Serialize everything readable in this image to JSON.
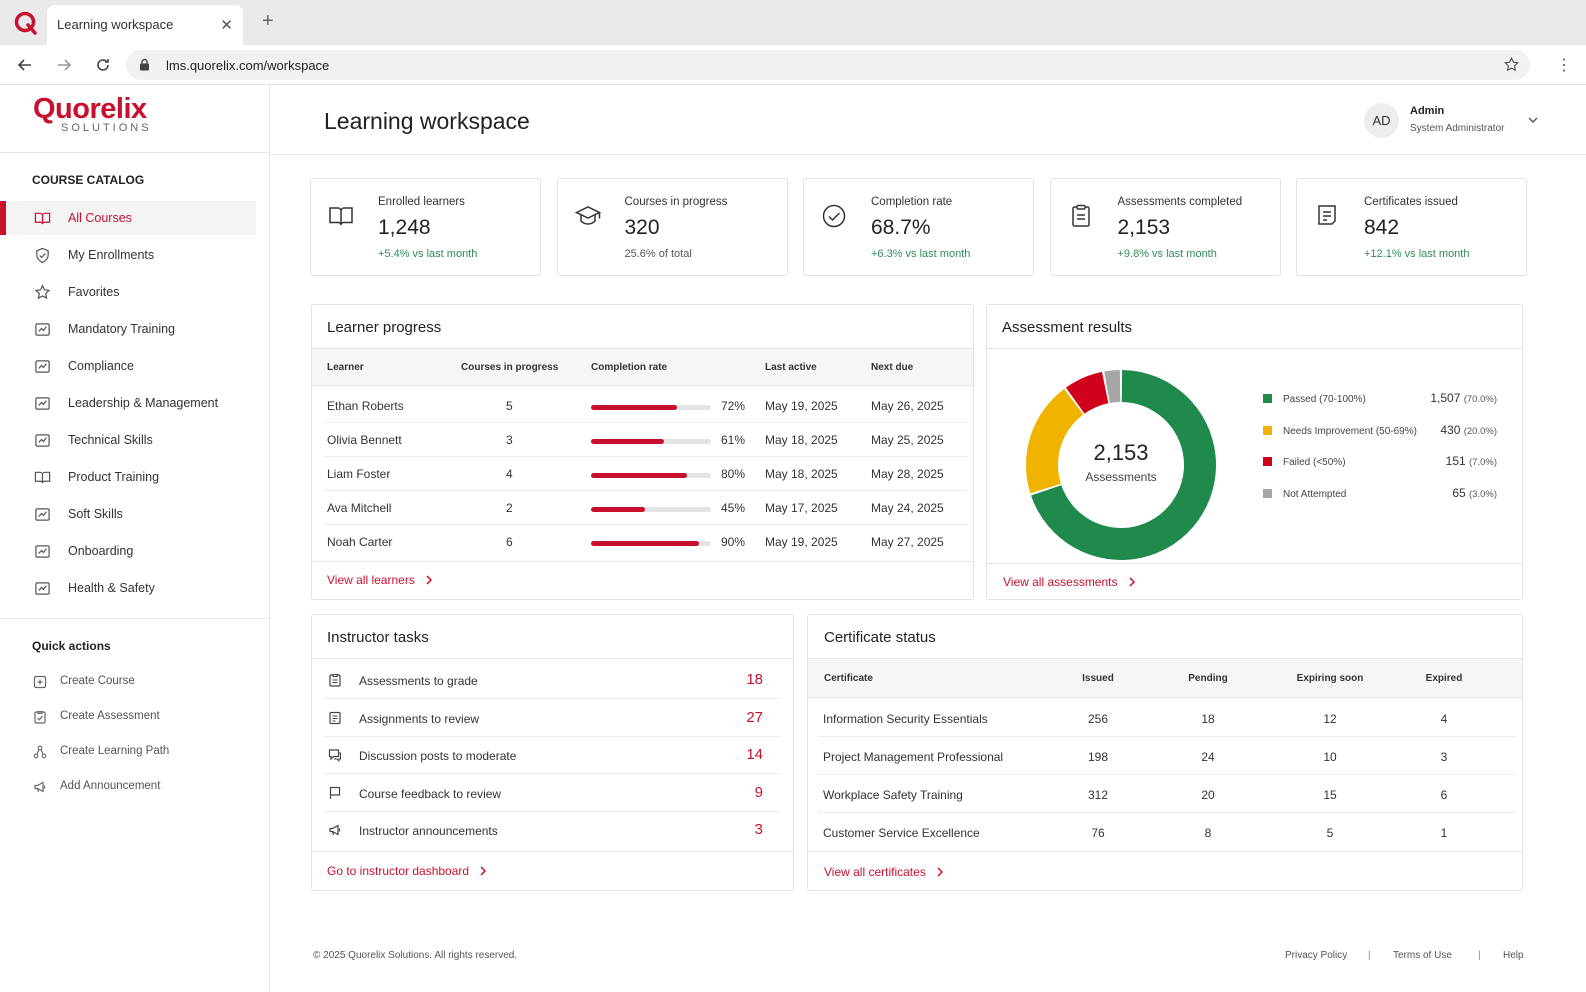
{
  "browser": {
    "tab_title": "Learning workspace",
    "tab_close": "✕",
    "new_tab": "+",
    "url": "lms.quorelix.com/workspace"
  },
  "brand": {
    "name": "Quorelix",
    "sub": "SOLUTIONS",
    "color": "#c8102e"
  },
  "sidebar": {
    "catalog_heading": "COURSE CATALOG",
    "items": [
      {
        "label": "All Courses",
        "icon": "book-icon",
        "active": true
      },
      {
        "label": "My Enrollments",
        "icon": "shield-check-icon"
      },
      {
        "label": "Favorites",
        "icon": "star-icon"
      },
      {
        "label": "Mandatory Training",
        "icon": "chart-box-icon"
      },
      {
        "label": "Compliance",
        "icon": "chart-box-icon"
      },
      {
        "label": "Leadership & Management",
        "icon": "chart-box-icon"
      },
      {
        "label": "Technical Skills",
        "icon": "chart-box-icon"
      },
      {
        "label": "Product Training",
        "icon": "book-icon"
      },
      {
        "label": "Soft Skills",
        "icon": "chart-box-icon"
      },
      {
        "label": "Onboarding",
        "icon": "chart-box-icon"
      },
      {
        "label": "Health & Safety",
        "icon": "chart-box-icon"
      }
    ],
    "quick_heading": "Quick actions",
    "quick_actions": [
      {
        "label": "Create Course",
        "icon": "plus-box-icon"
      },
      {
        "label": "Create Assessment",
        "icon": "clipboard-check-icon"
      },
      {
        "label": "Create Learning Path",
        "icon": "path-icon"
      },
      {
        "label": "Add Announcement",
        "icon": "megaphone-icon"
      }
    ]
  },
  "header": {
    "title": "Learning workspace",
    "avatar": "AD",
    "user_name": "Admin",
    "user_role": "System Administrator"
  },
  "stats": [
    {
      "label": "Enrolled learners",
      "value": "1,248",
      "delta": "+5.4% vs last month",
      "icon": "book-open-icon",
      "positive": true
    },
    {
      "label": "Courses in progress",
      "value": "320",
      "delta": "25.6% of total",
      "icon": "graduation-cap-icon",
      "positive": false
    },
    {
      "label": "Completion rate",
      "value": "68.7%",
      "delta": "+6.3% vs last month",
      "icon": "check-circle-icon",
      "positive": true
    },
    {
      "label": "Assessments completed",
      "value": "2,153",
      "delta": "+9.8% vs last month",
      "icon": "clipboard-icon",
      "positive": true
    },
    {
      "label": "Certificates issued",
      "value": "842",
      "delta": "+12.1% vs last month",
      "icon": "certificate-icon",
      "positive": true
    }
  ],
  "learner_progress": {
    "title": "Learner progress",
    "columns": [
      "Learner",
      "Courses in progress",
      "Completion rate",
      "Last active",
      "Next due"
    ],
    "rows": [
      {
        "name": "Ethan Roberts",
        "courses": "5",
        "rate": 72,
        "rate_label": "72%",
        "last": "May 19, 2025",
        "next": "May 26, 2025"
      },
      {
        "name": "Olivia Bennett",
        "courses": "3",
        "rate": 61,
        "rate_label": "61%",
        "last": "May 18, 2025",
        "next": "May 25, 2025"
      },
      {
        "name": "Liam Foster",
        "courses": "4",
        "rate": 80,
        "rate_label": "80%",
        "last": "May 18, 2025",
        "next": "May 28, 2025"
      },
      {
        "name": "Ava Mitchell",
        "courses": "2",
        "rate": 45,
        "rate_label": "45%",
        "last": "May 17, 2025",
        "next": "May 24, 2025"
      },
      {
        "name": "Noah Carter",
        "courses": "6",
        "rate": 90,
        "rate_label": "90%",
        "last": "May 19, 2025",
        "next": "May 27, 2025"
      }
    ],
    "link": "View all learners"
  },
  "assessment_results": {
    "title": "Assessment results",
    "center_value": "2,153",
    "center_label": "Assessments",
    "link": "View all assessments"
  },
  "chart_data": {
    "type": "pie",
    "categories": [
      "Passed (70-100%)",
      "Needs Improvement (50-69%)",
      "Failed (<50%)",
      "Not Attempted"
    ],
    "values": [
      1507,
      430,
      151,
      65
    ],
    "percent_labels": [
      "(70.0%)",
      "(20.0%)",
      "(7.0%)",
      "(3.0%)"
    ],
    "value_labels": [
      "1,507",
      "430",
      "151",
      "65"
    ],
    "colors": [
      "#1f8a4c",
      "#f0b400",
      "#d0021b",
      "#a6a6a6"
    ],
    "donut": true,
    "legend": "right"
  },
  "instructor_tasks": {
    "title": "Instructor tasks",
    "items": [
      {
        "label": "Assessments to grade",
        "count": "18",
        "icon": "clipboard-icon"
      },
      {
        "label": "Assignments to review",
        "count": "27",
        "icon": "document-icon"
      },
      {
        "label": "Discussion posts to moderate",
        "count": "14",
        "icon": "chat-icon"
      },
      {
        "label": "Course feedback to review",
        "count": "9",
        "icon": "flag-icon"
      },
      {
        "label": "Instructor announcements",
        "count": "3",
        "icon": "megaphone-icon"
      }
    ],
    "link": "Go to instructor dashboard"
  },
  "certificate_status": {
    "title": "Certificate status",
    "columns": [
      "Certificate",
      "Issued",
      "Pending",
      "Expiring soon",
      "Expired"
    ],
    "rows": [
      [
        "Information Security Essentials",
        "256",
        "18",
        "12",
        "4"
      ],
      [
        "Project Management Professional",
        "198",
        "24",
        "10",
        "3"
      ],
      [
        "Workplace Safety Training",
        "312",
        "20",
        "15",
        "6"
      ],
      [
        "Customer Service Excellence",
        "76",
        "8",
        "5",
        "1"
      ]
    ],
    "link": "View all certificates"
  },
  "footer": {
    "copyright": "© 2025 Quorelix Solutions. All rights reserved.",
    "links": [
      "Privacy Policy",
      "Terms of Use",
      "Help"
    ],
    "separator": "|"
  }
}
